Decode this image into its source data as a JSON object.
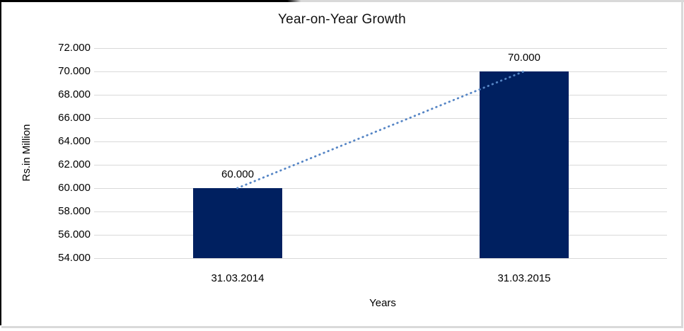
{
  "chart_data": {
    "type": "bar",
    "title": "Year-on-Year Growth",
    "xlabel": "Years",
    "ylabel": "Rs.in Million",
    "categories": [
      "31.03.2014",
      "31.03.2015"
    ],
    "values": [
      60000,
      70000
    ],
    "value_labels": [
      "60.000",
      "70.000"
    ],
    "ylim": [
      54000,
      72000
    ],
    "ytick_step": 2000,
    "ytick_labels": [
      "54.000",
      "56.000",
      "58.000",
      "60.000",
      "62.000",
      "64.000",
      "66.000",
      "68.000",
      "70.000",
      "72.000"
    ],
    "grid": true,
    "legend": false,
    "trendline": {
      "style": "dotted"
    },
    "colors": {
      "bar": "#002060",
      "trendline": "#5585C5",
      "gridline": "#D9D9D9",
      "text": "#000000"
    }
  }
}
